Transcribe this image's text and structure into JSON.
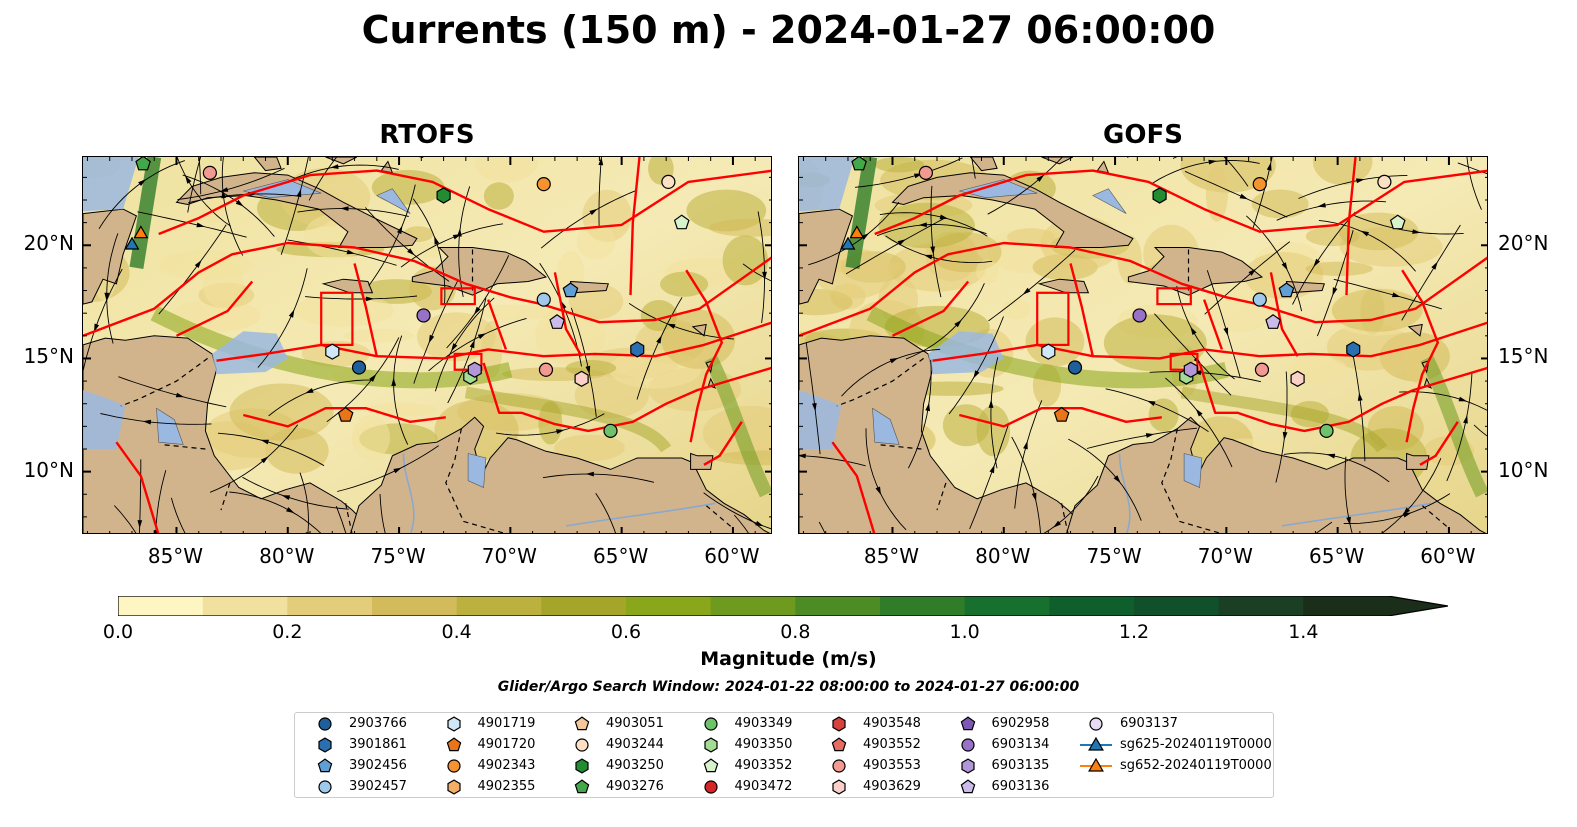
{
  "title": "Currents (150 m) - 2024-01-27 06:00:00",
  "panels": [
    {
      "title": "RTOFS"
    },
    {
      "title": "GOFS"
    }
  ],
  "x_ticks": [
    "85°W",
    "80°W",
    "75°W",
    "70°W",
    "65°W",
    "60°W"
  ],
  "y_ticks": [
    "20°N",
    "15°N",
    "10°N"
  ],
  "colorbar": {
    "label": "Magnitude (m/s)",
    "ticks": [
      "0.0",
      "0.2",
      "0.4",
      "0.6",
      "0.8",
      "1.0",
      "1.2",
      "1.4"
    ],
    "colors": [
      "#fdf6c3",
      "#f2e19e",
      "#e3cc7a",
      "#d3bb5b",
      "#bcb03e",
      "#a5a529",
      "#8aa61a",
      "#6d9a1f",
      "#4d8c24",
      "#2f7d28",
      "#18702e",
      "#0f5f2c",
      "#10502a",
      "#1a3f24",
      "#1b2e1a"
    ]
  },
  "search_window": "Glider/Argo Search Window: 2024-01-22 08:00:00 to 2024-01-27 06:00:00",
  "legend": [
    {
      "label": "2903766",
      "marker": "circle",
      "color": "#1f5f9a"
    },
    {
      "label": "3901861",
      "marker": "hexagon",
      "color": "#2a6fb0"
    },
    {
      "label": "3902456",
      "marker": "pentagon",
      "color": "#5f9fd5"
    },
    {
      "label": "3902457",
      "marker": "circle",
      "color": "#9fc8ea"
    },
    {
      "label": "4901719",
      "marker": "hexagon",
      "color": "#cfe7f7"
    },
    {
      "label": "4901720",
      "marker": "pentagon",
      "color": "#e8751a"
    },
    {
      "label": "4902343",
      "marker": "circle",
      "color": "#f4932f"
    },
    {
      "label": "4902355",
      "marker": "hexagon",
      "color": "#f5ae68"
    },
    {
      "label": "4903051",
      "marker": "pentagon",
      "color": "#f6c79a"
    },
    {
      "label": "4903244",
      "marker": "circle",
      "color": "#fbe0c4"
    },
    {
      "label": "4903250",
      "marker": "hexagon",
      "color": "#238b32"
    },
    {
      "label": "4903276",
      "marker": "pentagon",
      "color": "#42a84a"
    },
    {
      "label": "4903349",
      "marker": "circle",
      "color": "#6ec36a"
    },
    {
      "label": "4903350",
      "marker": "hexagon",
      "color": "#a4dc93"
    },
    {
      "label": "4903352",
      "marker": "pentagon",
      "color": "#d8f2cc"
    },
    {
      "label": "4903472",
      "marker": "circle",
      "color": "#d62728"
    },
    {
      "label": "4903548",
      "marker": "hexagon",
      "color": "#d8423c"
    },
    {
      "label": "4903552",
      "marker": "pentagon",
      "color": "#e86b63"
    },
    {
      "label": "4903553",
      "marker": "circle",
      "color": "#f29a92"
    },
    {
      "label": "4903629",
      "marker": "hexagon",
      "color": "#fbd0c9"
    },
    {
      "label": "6902958",
      "marker": "pentagon",
      "color": "#7e57b6"
    },
    {
      "label": "6903134",
      "marker": "circle",
      "color": "#9872c8"
    },
    {
      "label": "6903135",
      "marker": "hexagon",
      "color": "#b197d8"
    },
    {
      "label": "6903136",
      "marker": "pentagon",
      "color": "#cbbbe8"
    },
    {
      "label": "6903137",
      "marker": "circle",
      "color": "#e6ddf5"
    },
    {
      "label": "sg625-20240119T0000",
      "marker": "triangle-line",
      "color": "#1f77b4"
    },
    {
      "label": "sg652-20240119T0000",
      "marker": "triangle-line",
      "color": "#ff7f0e"
    }
  ],
  "map_colors": {
    "land": "#d2b48c",
    "water": "#9bb8e0",
    "boundary": "#ff0000"
  },
  "markers": [
    {
      "label": "4903276",
      "lon": -86.5,
      "lat": 23.6
    },
    {
      "label": "4903553",
      "lon": -83.5,
      "lat": 23.2
    },
    {
      "label": "4903250",
      "lon": -73.0,
      "lat": 22.2
    },
    {
      "label": "4902343",
      "lon": -68.5,
      "lat": 22.7
    },
    {
      "label": "4903244",
      "lon": -62.9,
      "lat": 22.8
    },
    {
      "label": "4903352",
      "lon": -62.3,
      "lat": 21.0
    },
    {
      "label": "sg652-20240119T0000",
      "lon": -86.6,
      "lat": 20.5
    },
    {
      "label": "sg625-20240119T0000",
      "lon": -87.0,
      "lat": 20.0
    },
    {
      "label": "3902456",
      "lon": -67.3,
      "lat": 18.0
    },
    {
      "label": "3902457",
      "lon": -68.5,
      "lat": 17.6
    },
    {
      "label": "6903134",
      "lon": -73.9,
      "lat": 16.9
    },
    {
      "label": "6903136",
      "lon": -67.9,
      "lat": 16.6
    },
    {
      "label": "4901719",
      "lon": -78.0,
      "lat": 15.3
    },
    {
      "label": "2903766",
      "lon": -76.8,
      "lat": 14.6
    },
    {
      "label": "4903350",
      "lon": -71.8,
      "lat": 14.2
    },
    {
      "label": "6903135",
      "lon": -71.6,
      "lat": 14.5
    },
    {
      "label": "4903553",
      "lon": -68.4,
      "lat": 14.5
    },
    {
      "label": "4903629",
      "lon": -66.8,
      "lat": 14.1
    },
    {
      "label": "3901861",
      "lon": -64.3,
      "lat": 15.4
    },
    {
      "label": "4901720",
      "lon": -77.4,
      "lat": 12.5
    },
    {
      "label": "4903349",
      "lon": -65.5,
      "lat": 11.8
    }
  ]
}
